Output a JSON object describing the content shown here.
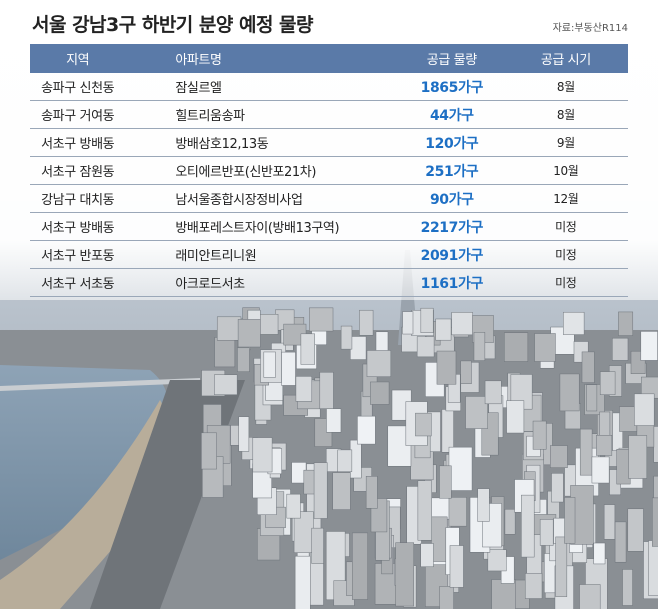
{
  "header": {
    "title": "서울 강남3구 하반기 분양 예정 물량",
    "source": "자료:부동산R114"
  },
  "table": {
    "columns": [
      "지역",
      "아파트명",
      "공급 물량",
      "공급 시기"
    ],
    "rows": [
      [
        "송파구 신천동",
        "잠실르엘",
        "1865가구",
        "8월"
      ],
      [
        "송파구 거여동",
        "힐트리움송파",
        "44가구",
        "8월"
      ],
      [
        "서초구 방배동",
        "방배삼호12,13동",
        "120가구",
        "9월"
      ],
      [
        "서초구 잠원동",
        "오티에르반포(신반포21차)",
        "251가구",
        "10월"
      ],
      [
        "강남구 대치동",
        "남서울종합시장정비사업",
        "90가구",
        "12월"
      ],
      [
        "서초구 방배동",
        "방배포레스트자이(방배13구역)",
        "2217가구",
        "미정"
      ],
      [
        "서초구 반포동",
        "래미안트리니원",
        "2091가구",
        "미정"
      ],
      [
        "서초구 서초동",
        "아크로드서초",
        "1161가구",
        "미정"
      ]
    ]
  }
}
